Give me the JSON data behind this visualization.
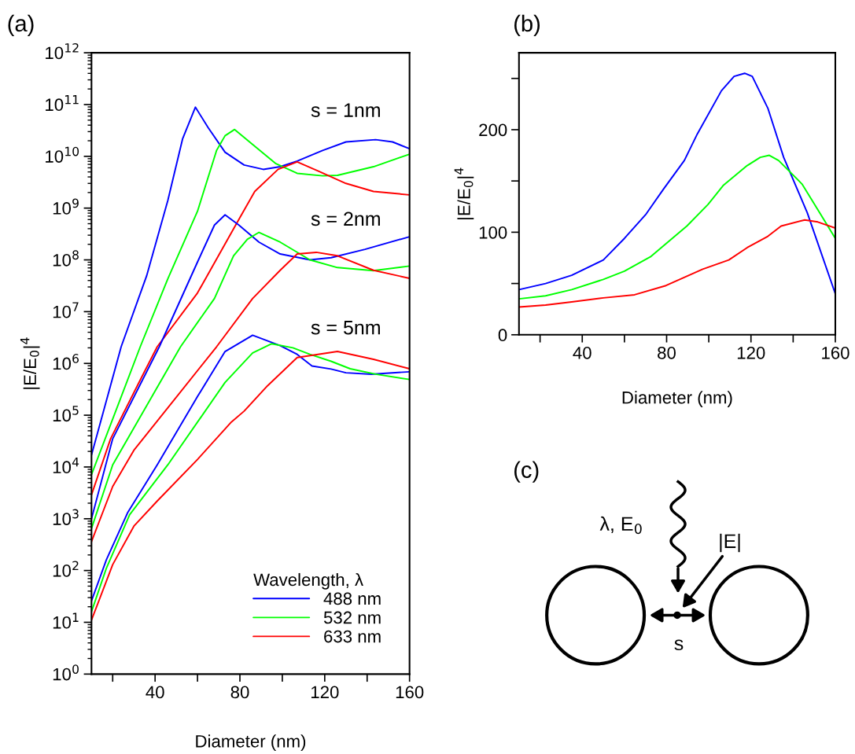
{
  "chart_data": [
    {
      "type": "line",
      "title": "(a)",
      "xlabel": "Diameter (nm)",
      "ylabel": "|E/E$_{0}$|$^{4}$",
      "log": "y",
      "legend": "lower right",
      "legend_title": "Wavelength, λ",
      "xlim": [
        10,
        160
      ],
      "xticks": [
        {
          "value": 20,
          "label": null
        },
        40,
        {
          "value": 60,
          "label": null
        },
        80,
        {
          "value": 100,
          "label": null
        },
        120,
        {
          "value": 140,
          "label": null
        },
        160
      ],
      "ylim": [
        1,
        1000000000000.0
      ],
      "yticks": [
        {
          "value": 1,
          "label": "10$^{0}$"
        },
        {
          "value": 10,
          "label": "10$^{1}$"
        },
        {
          "value": 100,
          "label": "10$^{2}$"
        },
        {
          "value": 1000.0,
          "label": "10$^{3}$"
        },
        {
          "value": 10000.0,
          "label": "10$^{4}$"
        },
        {
          "value": 100000.0,
          "label": "10$^{5}$"
        },
        {
          "value": 1000000.0,
          "label": "10$^{6}$"
        },
        {
          "value": 10000000.0,
          "label": "10$^{7}$"
        },
        {
          "value": 100000000.0,
          "label": "10$^{8}$"
        },
        {
          "value": 1000000000.0,
          "label": "10$^{9}$"
        },
        {
          "value": 10000000000.0,
          "label": "10$^{10}$"
        },
        {
          "value": 100000000000.0,
          "label": "10$^{11}$"
        },
        {
          "value": 1000000000000.0,
          "label": "10$^{12}$"
        }
      ],
      "annotations": [
        "s = 1nm",
        "s = 2nm",
        "s = 5nm"
      ],
      "series": [
        {
          "name": "488 nm",
          "color": "#0000ff",
          "x": [
            10,
            24,
            36,
            46,
            53,
            59,
            65,
            73,
            82,
            91,
            99,
            107,
            119,
            130,
            144,
            152,
            160
          ],
          "values": [
            17000.0,
            2100000.0,
            49000000.0,
            1400000000.0,
            22000000000.0,
            89000000000.0,
            36000000000.0,
            12000000000.0,
            6800000000.0,
            5600000000.0,
            6300000000.0,
            8100000000.0,
            13000000000.0,
            19000000000.0,
            21000000000.0,
            19000000000.0,
            14000000000.0
          ]
        },
        {
          "name": "532 nm",
          "color": "#00ff00",
          "x": [
            10,
            33,
            46,
            60,
            69,
            73,
            77.5,
            86,
            97,
            107,
            119,
            126,
            143,
            160
          ],
          "values": [
            7100.0,
            2100000.0,
            43000000.0,
            870000000.0,
            13000000000.0,
            25000000000.0,
            33000000000.0,
            17000000000.0,
            7200000000.0,
            4700000000.0,
            4200000000.0,
            4300000000.0,
            6300000000.0,
            11000000000.0
          ]
        },
        {
          "name": "633 nm",
          "color": "#ff0000",
          "x": [
            10,
            19,
            33,
            41,
            60,
            78,
            87,
            98,
            107,
            117,
            130,
            143,
            160
          ],
          "values": [
            2900.0,
            35000.0,
            480000.0,
            2100000.0,
            23000000.0,
            470000000.0,
            2100000000.0,
            5600000000.0,
            7800000000.0,
            5200000000.0,
            3000000000.0,
            2100000000.0,
            1800000000.0
          ]
        },
        {
          "color": "#0000ff",
          "x": [
            10,
            20,
            42,
            60,
            68,
            73,
            79.5,
            89,
            99,
            113,
            123,
            139,
            160
          ],
          "values": [
            1000.0,
            35000.0,
            2100000.0,
            91000000.0,
            470000000.0,
            740000000.0,
            470000000.0,
            220000000.0,
            130000000.0,
            100000000.0,
            110000000.0,
            160000000.0,
            280000000.0
          ]
        },
        {
          "color": "#00ff00",
          "x": [
            10,
            20,
            52,
            68,
            77,
            83.5,
            89,
            99,
            113,
            126,
            143,
            160
          ],
          "values": [
            650.0,
            11000.0,
            2100000.0,
            18000000.0,
            120000000.0,
            250000000.0,
            340000000.0,
            220000000.0,
            100000000.0,
            71000000.0,
            62000000.0,
            76000000.0
          ]
        },
        {
          "color": "#ff0000",
          "x": [
            10,
            20,
            30,
            69,
            86,
            99,
            107,
            116,
            126,
            143,
            160
          ],
          "values": [
            360.0,
            4200.0,
            21000.0,
            2100000.0,
            18000000.0,
            63000000.0,
            130000000.0,
            140000000.0,
            120000000.0,
            63000000.0,
            44000000.0
          ]
        },
        {
          "color": "#0000ff",
          "x": [
            10,
            17,
            27,
            41,
            60,
            73,
            86,
            99,
            107,
            114,
            123,
            130,
            142,
            160
          ],
          "values": [
            26,
            160.0,
            1300.0,
            11000.0,
            230000.0,
            1700000.0,
            3500000.0,
            2200000.0,
            1500000.0,
            890000.0,
            780000.0,
            660000.0,
            620000.0,
            690000.0
          ]
        },
        {
          "color": "#00ff00",
          "x": [
            10,
            17,
            28,
            46,
            73,
            86,
            95,
            105,
            113,
            123,
            132,
            144,
            160
          ],
          "values": [
            16,
            110.0,
            1200.0,
            11000.0,
            430000.0,
            1600000.0,
            2400000.0,
            2000000.0,
            1500000.0,
            1100000.0,
            790000.0,
            620000.0,
            490000.0
          ]
        },
        {
          "color": "#ff0000",
          "x": [
            10,
            20,
            30,
            41,
            60,
            76,
            82,
            93,
            107,
            126,
            143,
            160
          ],
          "values": [
            11,
            130.0,
            720.0,
            2200.0,
            14000.0,
            74000.0,
            120000.0,
            370000.0,
            1300000.0,
            1700000.0,
            1200000.0,
            790000.0
          ]
        }
      ]
    },
    {
      "type": "line",
      "title": "(b)",
      "xlabel": "Diameter (nm)",
      "ylabel": "|E/E$_{0}$|$^{4}$",
      "xlim": [
        10,
        160
      ],
      "xticks": [
        {
          "value": 20,
          "label": null
        },
        40,
        {
          "value": 60,
          "label": null
        },
        80,
        {
          "value": 100,
          "label": null
        },
        120,
        {
          "value": 140,
          "label": null
        },
        160
      ],
      "ylim": [
        0,
        275
      ],
      "yticks": [
        0,
        {
          "value": 50,
          "label": null
        },
        100,
        {
          "value": 150,
          "label": null
        },
        200,
        {
          "value": 250,
          "label": null
        }
      ],
      "series": [
        {
          "color": "#0000ff",
          "x": [
            10,
            22.6,
            35,
            50,
            60,
            70,
            78.5,
            88.4,
            94.6,
            106,
            112,
            117,
            120.6,
            128,
            135.5,
            146.7,
            160
          ],
          "values": [
            44,
            50,
            58,
            73,
            94,
            117,
            142,
            170,
            196,
            238,
            252,
            255,
            252,
            221,
            173,
            119,
            40
          ]
        },
        {
          "color": "#00ff00",
          "x": [
            10,
            22.6,
            35,
            50,
            60,
            72.3,
            81,
            89.6,
            99.6,
            107,
            118.2,
            124.4,
            128.7,
            133.1,
            144.2,
            151.7,
            160
          ],
          "values": [
            35,
            38,
            44,
            54,
            62,
            76,
            91,
            106,
            127,
            146,
            165,
            173,
            175,
            170,
            147,
            122,
            94
          ]
        },
        {
          "color": "#ff0000",
          "x": [
            10,
            22.6,
            35,
            50,
            64.8,
            79.7,
            97.1,
            109.5,
            118.2,
            128,
            134.3,
            145.5,
            151.7,
            160
          ],
          "values": [
            27,
            29,
            32,
            36,
            39,
            48,
            64,
            73,
            85,
            96,
            106,
            112,
            110,
            104
          ]
        }
      ]
    },
    {
      "type": "other",
      "title": "(c)",
      "annotations": [
        "λ, E$_{0}$",
        "|E|",
        "s"
      ]
    }
  ]
}
